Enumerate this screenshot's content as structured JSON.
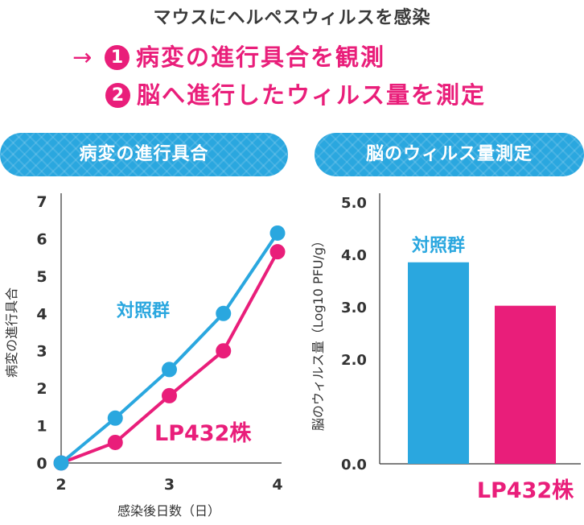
{
  "header": {
    "title": "マウスにヘルペスウィルスを感染",
    "arrow": "→",
    "points": [
      {
        "num": "1",
        "text": "病変の進行具合を観測"
      },
      {
        "num": "2",
        "text": "脳へ進行したウィルス量を測定"
      }
    ]
  },
  "panels": {
    "left_label": "病変の進行具合",
    "right_label": "脳のウィルス量測定"
  },
  "colors": {
    "control": "#2AA7DF",
    "lp432": "#E91E7A",
    "axis": "#333333"
  },
  "chart_data": [
    {
      "type": "line",
      "title": "病変の進行具合",
      "xlabel": "感染後日数（日）",
      "ylabel": "病変の進行具合",
      "xlim": [
        2,
        4
      ],
      "ylim": [
        0,
        7
      ],
      "x_ticks": [
        "2",
        "3",
        "4"
      ],
      "y_ticks": [
        "0",
        "1",
        "2",
        "3",
        "4",
        "5",
        "6",
        "7"
      ],
      "series": [
        {
          "name": "対照群",
          "x": [
            2,
            2.5,
            3,
            3.5,
            4
          ],
          "y": [
            0,
            1.2,
            2.5,
            4.0,
            6.15
          ]
        },
        {
          "name": "LP432株",
          "x": [
            2,
            2.5,
            3,
            3.5,
            4
          ],
          "y": [
            0,
            0.55,
            1.8,
            3.0,
            5.65
          ]
        }
      ]
    },
    {
      "type": "bar",
      "title": "脳のウィルス量測定",
      "ylabel": "脳のウィルス量（Log10 PFU/g）",
      "ylim": [
        0,
        5
      ],
      "y_ticks": [
        "0.0",
        "2.0",
        "3.0",
        "4.0",
        "5.0"
      ],
      "categories": [
        "対照群",
        "LP432株"
      ],
      "values": [
        3.85,
        3.02
      ]
    }
  ]
}
